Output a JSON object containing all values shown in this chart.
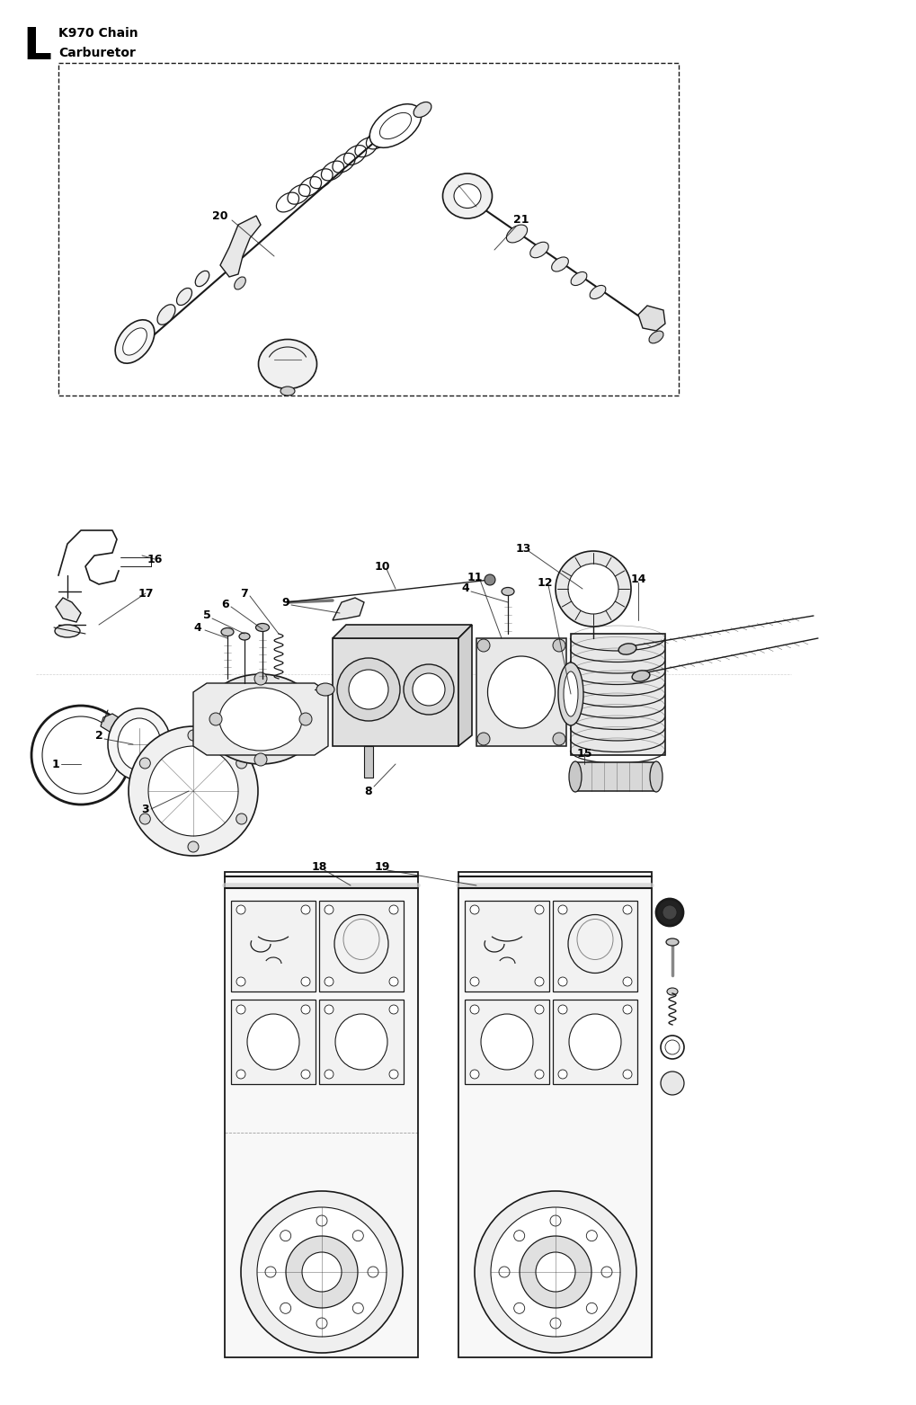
{
  "bg": "#ffffff",
  "lc": "#1a1a1a",
  "figw": 10.0,
  "figh": 15.43,
  "dpi": 100,
  "title_letter": "L",
  "title_line1": "K970 Chain",
  "title_line2": "Carburetor"
}
